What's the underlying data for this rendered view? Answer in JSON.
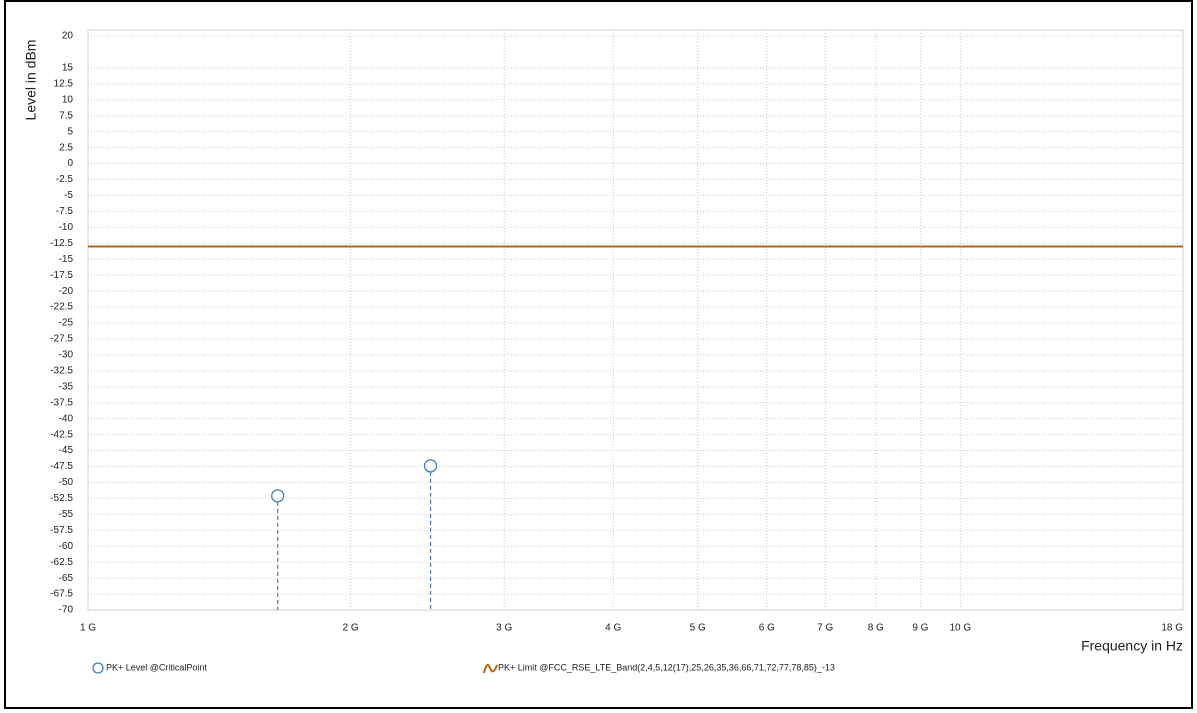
{
  "chart_data": {
    "type": "line",
    "y_label": "Level in dBm",
    "x_label": "Frequency in Hz",
    "xscale": "log",
    "xlim": [
      1000000000,
      18000000000
    ],
    "xticks": [
      {
        "value": 1000000000,
        "label": "1 G"
      },
      {
        "value": 2000000000,
        "label": "2 G"
      },
      {
        "value": 3000000000,
        "label": "3 G"
      },
      {
        "value": 4000000000,
        "label": "4 G"
      },
      {
        "value": 5000000000,
        "label": "5 G"
      },
      {
        "value": 6000000000,
        "label": "6 G"
      },
      {
        "value": 7000000000,
        "label": "7 G"
      },
      {
        "value": 8000000000,
        "label": "8 G"
      },
      {
        "value": 9000000000,
        "label": "9 G"
      },
      {
        "value": 10000000000,
        "label": "10 G"
      },
      {
        "value": 18000000000,
        "label": "18 G"
      }
    ],
    "ylim": [
      -70,
      20
    ],
    "yticks": [
      20,
      15,
      12.5,
      10,
      7.5,
      5,
      2.5,
      0,
      -2.5,
      -5,
      -7.5,
      -10,
      -12.5,
      -15,
      -17.5,
      -20,
      -22.5,
      -25,
      -27.5,
      -30,
      -32.5,
      -35,
      -37.5,
      -40,
      -42.5,
      -45,
      -47.5,
      -50,
      -52.5,
      -55,
      -57.5,
      -60,
      -62.5,
      -65,
      -67.5,
      -70
    ],
    "grid": true,
    "series": [
      {
        "name": "PK+ Level @CriticalPoint",
        "type": "stem",
        "color": "#3a7cc8",
        "x": [
          1650000000,
          2470000000
        ],
        "values": [
          -52.1,
          -47.4
        ]
      },
      {
        "name": "PK+ Limit @FCC_RSE_LTE_Band(2,4,5,12(17),25,26,35,36,66,71,72,77,78,85)_-13",
        "type": "line",
        "color": "#b5650f",
        "x": [
          1000000000,
          18000000000
        ],
        "values": [
          -13,
          -13
        ]
      }
    ]
  }
}
